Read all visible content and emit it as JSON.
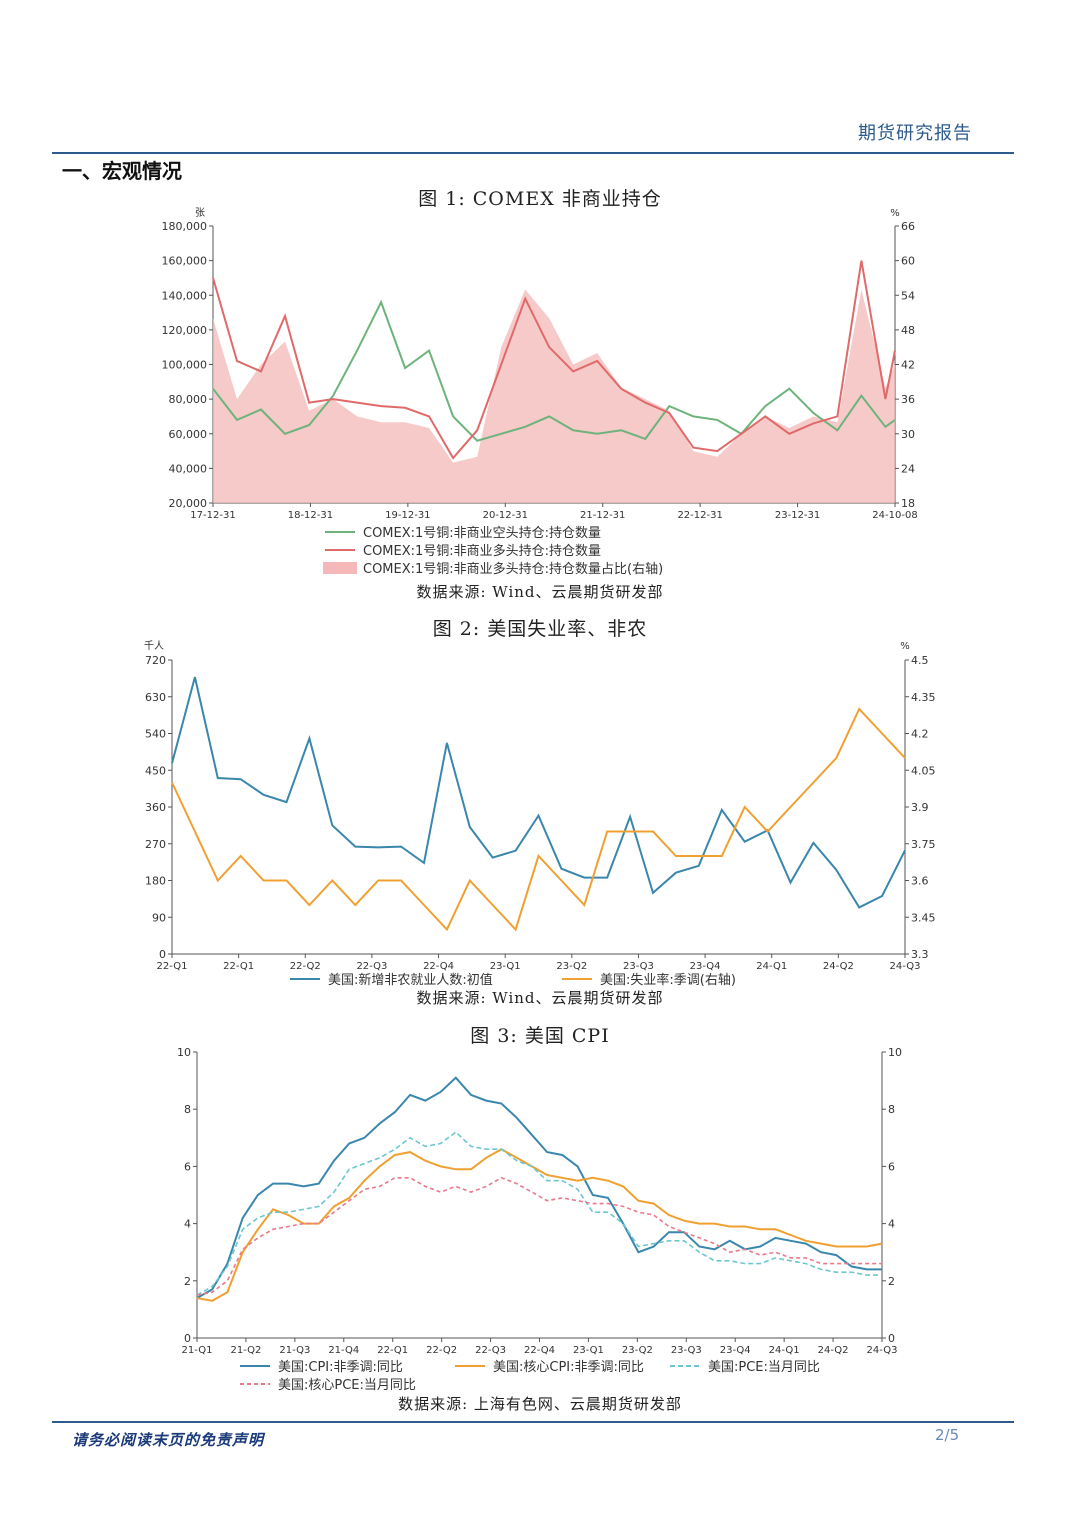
{
  "header": {
    "report_type": "期货研究报告",
    "section_title": "一、宏观情况"
  },
  "footer": {
    "disclaimer": "请务必阅读末页的免责声明",
    "page": "2/5"
  },
  "colors": {
    "green": "#6db37b",
    "red": "#e06a6a",
    "pink_fill": "#f4b8b8",
    "blue": "#3a87ad",
    "orange": "#f0a030",
    "cyan": "#6cc7cf",
    "rose": "#e87a8a",
    "accent": "#2d5b8d"
  },
  "chart_data": [
    {
      "type": "line",
      "title": "图 1: COMEX 非商业持仓",
      "source": "数据来源: Wind、云晨期货研发部",
      "y_left_unit": "张",
      "y_right_unit": "%",
      "ylim": [
        20000,
        180000
      ],
      "ylim_right": [
        18,
        66
      ],
      "y_ticks": [
        "20,000",
        "40,000",
        "60,000",
        "80,000",
        "100,000",
        "120,000",
        "140,000",
        "160,000",
        "180,000"
      ],
      "y_right_ticks": [
        "18",
        "24",
        "30",
        "36",
        "42",
        "48",
        "54",
        "60",
        "66"
      ],
      "x_ticks": [
        "17-12-31",
        "18-12-31",
        "19-12-31",
        "20-12-31",
        "21-12-31",
        "22-12-31",
        "23-12-31",
        "24-10-08"
      ],
      "legend": [
        "COMEX:1号铜:非商业空头持仓:持仓数量",
        "COMEX:1号铜:非商业多头持仓:持仓数量",
        "COMEX:1号铜:非商业多头持仓:持仓数量占比(右轴)"
      ],
      "x": [
        0,
        0.25,
        0.5,
        0.75,
        1,
        1.25,
        1.5,
        1.75,
        2,
        2.25,
        2.5,
        2.75,
        3,
        3.25,
        3.5,
        3.75,
        4,
        4.25,
        4.5,
        4.75,
        5,
        5.25,
        5.5,
        5.75,
        6,
        6.25,
        6.5,
        6.75,
        7,
        7.1
      ],
      "series": [
        {
          "name": "COMEX:1号铜:非商业空头持仓:持仓数量",
          "axis": "left",
          "render": "line",
          "values": [
            86000,
            68000,
            74000,
            60000,
            65000,
            82000,
            108000,
            136000,
            98000,
            108000,
            70000,
            56000,
            60000,
            64000,
            70000,
            62000,
            60000,
            62000,
            57000,
            76000,
            70000,
            68000,
            60000,
            76000,
            86000,
            72000,
            62000,
            82000,
            64000,
            68000
          ]
        },
        {
          "name": "COMEX:1号铜:非商业多头持仓:持仓数量",
          "axis": "left",
          "render": "line",
          "values": [
            150000,
            102000,
            96000,
            128000,
            78000,
            80000,
            78000,
            76000,
            75000,
            70000,
            46000,
            62000,
            100000,
            138000,
            110000,
            96000,
            102000,
            86000,
            78000,
            72000,
            52000,
            50000,
            60000,
            70000,
            60000,
            66000,
            70000,
            160000,
            80000,
            108000
          ]
        },
        {
          "name": "COMEX:1号铜:非商业多头持仓:持仓数量占比(右轴)",
          "axis": "right",
          "render": "area",
          "values": [
            50,
            36,
            42,
            46,
            34,
            36,
            33,
            32,
            32,
            31,
            25,
            26,
            45,
            55,
            50,
            42,
            44,
            38,
            36,
            34,
            27,
            26,
            30,
            33,
            31,
            33,
            32,
            55,
            38,
            42
          ]
        }
      ]
    },
    {
      "type": "line",
      "title": "图 2: 美国失业率、非农",
      "source": "数据来源: Wind、云晨期货研发部",
      "y_left_unit": "千人",
      "y_right_unit": "%",
      "ylim": [
        0,
        720
      ],
      "ylim_right": [
        3.3,
        4.5
      ],
      "y_ticks": [
        "0",
        "90",
        "180",
        "270",
        "360",
        "450",
        "540",
        "630",
        "720"
      ],
      "y_right_ticks": [
        "3.3",
        "3.45",
        "3.6",
        "3.75",
        "3.9",
        "4.05",
        "4.2",
        "4.35",
        "4.5"
      ],
      "x_ticks": [
        "22-Q1",
        "22-Q1",
        "22-Q2",
        "22-Q3",
        "22-Q4",
        "23-Q1",
        "23-Q2",
        "23-Q3",
        "23-Q4",
        "24-Q1",
        "24-Q2",
        "24-Q3"
      ],
      "legend": [
        "美国:新增非农就业人数:初值",
        "美国:失业率:季调(右轴)"
      ],
      "x": [
        0,
        1,
        2,
        3,
        4,
        5,
        6,
        7,
        8,
        9,
        10,
        11,
        12,
        13,
        14,
        15,
        16,
        17,
        18,
        19,
        20,
        21,
        22,
        23,
        24,
        25,
        26,
        27,
        28,
        29,
        30,
        31,
        32
      ],
      "series": [
        {
          "name": "美国:新增非农就业人数:初值",
          "axis": "left",
          "render": "line",
          "values": [
            467,
            678,
            431,
            428,
            390,
            372,
            528,
            315,
            263,
            261,
            263,
            223,
            517,
            311,
            236,
            253,
            339,
            209,
            187,
            187,
            336,
            150,
            199,
            216,
            353,
            275,
            303,
            175,
            272,
            206,
            114,
            142,
            254
          ]
        },
        {
          "name": "美国:失业率:季调(右轴)",
          "axis": "right",
          "render": "line",
          "values": [
            4.0,
            3.8,
            3.6,
            3.7,
            3.6,
            3.6,
            3.5,
            3.6,
            3.5,
            3.6,
            3.6,
            3.5,
            3.4,
            3.6,
            3.5,
            3.4,
            3.7,
            3.6,
            3.5,
            3.8,
            3.8,
            3.8,
            3.7,
            3.7,
            3.7,
            3.9,
            3.8,
            3.9,
            4.0,
            4.1,
            4.3,
            4.2,
            4.1
          ]
        }
      ]
    },
    {
      "type": "line",
      "title": "图 3: 美国 CPI",
      "source": "数据来源: 上海有色网、云晨期货研发部",
      "ylim": [
        0,
        10
      ],
      "ylim_right": [
        0,
        10
      ],
      "y_ticks": [
        "0",
        "2",
        "4",
        "6",
        "8",
        "10"
      ],
      "y_right_ticks": [
        "0",
        "2",
        "4",
        "6",
        "8",
        "10"
      ],
      "x_ticks": [
        "21-Q1",
        "21-Q2",
        "21-Q3",
        "21-Q4",
        "22-Q1",
        "22-Q2",
        "22-Q3",
        "22-Q4",
        "23-Q1",
        "23-Q2",
        "23-Q3",
        "23-Q4",
        "24-Q1",
        "24-Q2",
        "24-Q3"
      ],
      "legend": [
        "美国:CPI:非季调:同比",
        "美国:核心CPI:非季调:同比",
        "美国:PCE:当月同比",
        "美国:核心PCE:当月同比"
      ],
      "x": [
        0,
        1,
        2,
        3,
        4,
        5,
        6,
        7,
        8,
        9,
        10,
        11,
        12,
        13,
        14,
        15,
        16,
        17,
        18,
        19,
        20,
        21,
        22,
        23,
        24,
        25,
        26,
        27,
        28,
        29,
        30,
        31,
        32,
        33,
        34,
        35,
        36,
        37,
        38,
        39,
        40,
        41,
        42,
        43,
        44,
        45
      ],
      "series": [
        {
          "name": "美国:CPI:非季调:同比",
          "axis": "left",
          "render": "line",
          "values": [
            1.4,
            1.7,
            2.6,
            4.2,
            5.0,
            5.4,
            5.4,
            5.3,
            5.4,
            6.2,
            6.8,
            7.0,
            7.5,
            7.9,
            8.5,
            8.3,
            8.6,
            9.1,
            8.5,
            8.3,
            8.2,
            7.7,
            7.1,
            6.5,
            6.4,
            6.0,
            5.0,
            4.9,
            4.0,
            3.0,
            3.2,
            3.7,
            3.7,
            3.2,
            3.1,
            3.4,
            3.1,
            3.2,
            3.5,
            3.4,
            3.3,
            3.0,
            2.9,
            2.5,
            2.4,
            2.4
          ]
        },
        {
          "name": "美国:核心CPI:非季调:同比",
          "axis": "left",
          "render": "line",
          "values": [
            1.4,
            1.3,
            1.6,
            3.0,
            3.8,
            4.5,
            4.3,
            4.0,
            4.0,
            4.6,
            4.9,
            5.5,
            6.0,
            6.4,
            6.5,
            6.2,
            6.0,
            5.9,
            5.9,
            6.3,
            6.6,
            6.3,
            6.0,
            5.7,
            5.6,
            5.5,
            5.6,
            5.5,
            5.3,
            4.8,
            4.7,
            4.3,
            4.1,
            4.0,
            4.0,
            3.9,
            3.9,
            3.8,
            3.8,
            3.6,
            3.4,
            3.3,
            3.2,
            3.2,
            3.2,
            3.3
          ]
        },
        {
          "name": "美国:PCE:当月同比",
          "axis": "left",
          "render": "line",
          "values": [
            1.5,
            1.8,
            2.5,
            3.8,
            4.2,
            4.4,
            4.4,
            4.5,
            4.6,
            5.1,
            5.9,
            6.1,
            6.3,
            6.6,
            7.0,
            6.7,
            6.8,
            7.2,
            6.7,
            6.6,
            6.6,
            6.2,
            6.0,
            5.5,
            5.5,
            5.2,
            4.4,
            4.4,
            4.0,
            3.2,
            3.3,
            3.4,
            3.4,
            3.0,
            2.7,
            2.7,
            2.6,
            2.6,
            2.8,
            2.7,
            2.6,
            2.4,
            2.3,
            2.3,
            2.2,
            2.2
          ]
        },
        {
          "name": "美国:核心PCE:当月同比",
          "axis": "left",
          "render": "line",
          "values": [
            1.5,
            1.6,
            2.0,
            3.1,
            3.5,
            3.8,
            3.9,
            4.0,
            4.0,
            4.4,
            4.8,
            5.2,
            5.3,
            5.6,
            5.6,
            5.3,
            5.1,
            5.3,
            5.1,
            5.3,
            5.6,
            5.4,
            5.1,
            4.8,
            4.9,
            4.8,
            4.7,
            4.7,
            4.6,
            4.4,
            4.3,
            3.9,
            3.7,
            3.5,
            3.3,
            3.0,
            3.1,
            2.9,
            3.0,
            2.8,
            2.8,
            2.6,
            2.6,
            2.6,
            2.6,
            2.6
          ]
        }
      ]
    }
  ]
}
